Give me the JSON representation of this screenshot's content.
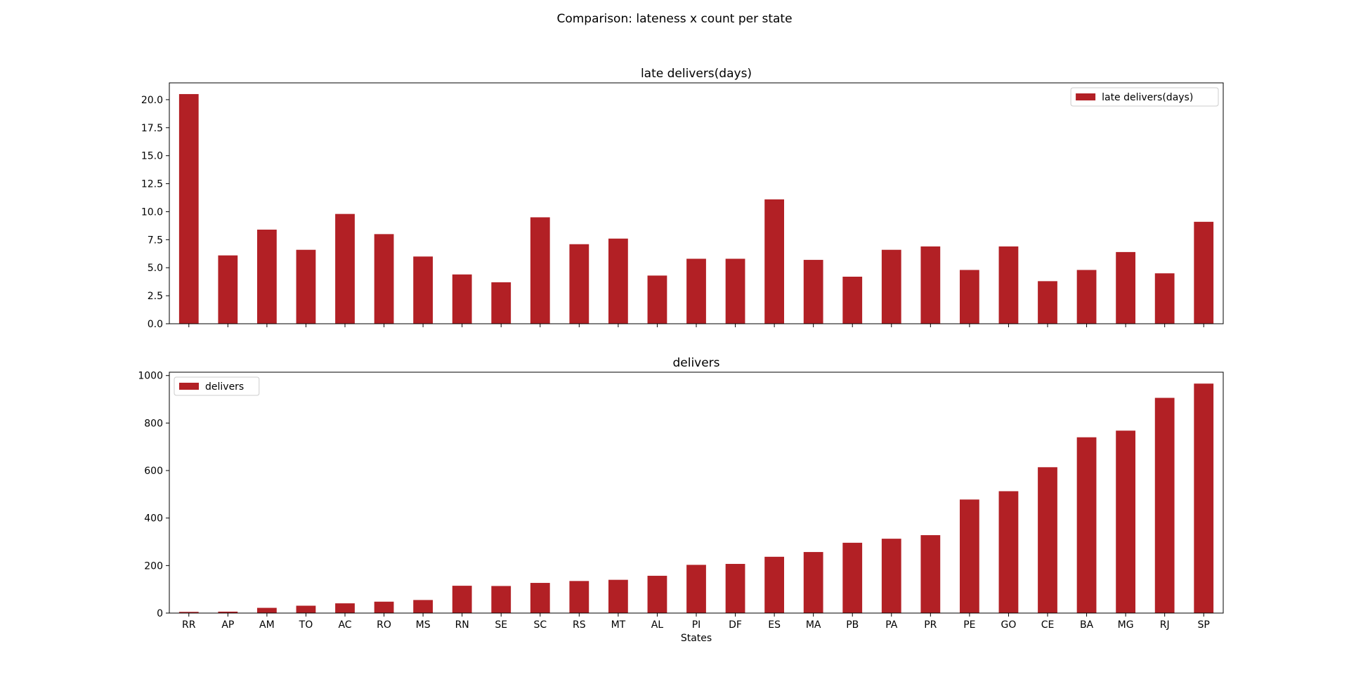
{
  "figure": {
    "suptitle": "Comparison: lateness x count per state",
    "bar_color": "#b22025"
  },
  "chart_data": [
    {
      "type": "bar",
      "title": "late delivers(days)",
      "xlabel": "",
      "ylabel": "",
      "categories": [
        "RR",
        "AP",
        "AM",
        "TO",
        "AC",
        "RO",
        "MS",
        "RN",
        "SE",
        "SC",
        "RS",
        "MT",
        "AL",
        "PI",
        "DF",
        "ES",
        "MA",
        "PB",
        "PA",
        "PR",
        "PE",
        "GO",
        "CE",
        "BA",
        "MG",
        "RJ",
        "SP"
      ],
      "series": [
        {
          "name": "late delivers(days)",
          "values": [
            20.5,
            6.1,
            8.4,
            6.6,
            9.8,
            8.0,
            6.0,
            4.4,
            3.7,
            9.5,
            7.1,
            7.6,
            4.3,
            5.8,
            5.8,
            11.1,
            5.7,
            4.2,
            6.6,
            6.9,
            4.8,
            6.9,
            3.8,
            4.8,
            6.4,
            4.5,
            9.1
          ]
        }
      ],
      "ylim": [
        0,
        21.5
      ],
      "yticks": [
        "0.0",
        "2.5",
        "5.0",
        "7.5",
        "10.0",
        "12.5",
        "15.0",
        "17.5",
        "20.0"
      ],
      "show_xtick_labels": false,
      "legend": "upper right",
      "grid": false
    },
    {
      "type": "bar",
      "title": "delivers",
      "xlabel": "States",
      "ylabel": "",
      "categories": [
        "RR",
        "AP",
        "AM",
        "TO",
        "AC",
        "RO",
        "MS",
        "RN",
        "SE",
        "SC",
        "RS",
        "MT",
        "AL",
        "PI",
        "DF",
        "ES",
        "MA",
        "PB",
        "PA",
        "PR",
        "PE",
        "GO",
        "CE",
        "BA",
        "MG",
        "RJ",
        "SP"
      ],
      "series": [
        {
          "name": "delivers",
          "values": [
            5,
            6,
            22,
            31,
            41,
            48,
            55,
            115,
            114,
            127,
            135,
            140,
            157,
            203,
            207,
            237,
            257,
            296,
            313,
            328,
            478,
            513,
            614,
            740,
            768,
            906,
            966
          ]
        }
      ],
      "ylim": [
        0,
        1014
      ],
      "yticks": [
        "0",
        "200",
        "400",
        "600",
        "800",
        "1000"
      ],
      "show_xtick_labels": true,
      "legend": "upper left",
      "grid": false
    }
  ]
}
